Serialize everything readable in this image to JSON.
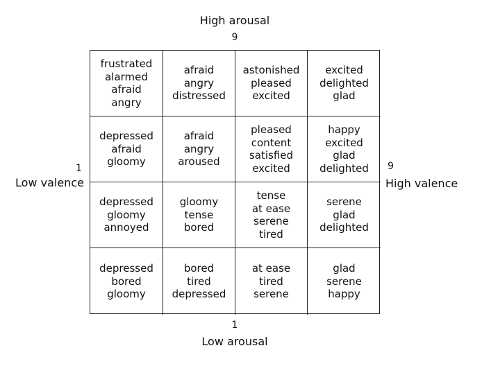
{
  "axes": {
    "top_label": "High arousal",
    "top_value": "9",
    "bottom_label": "Low arousal",
    "bottom_value": "1",
    "left_label": "Low valence",
    "left_value": "1",
    "right_label": "High valence",
    "right_value": "9"
  },
  "grid": [
    [
      [
        "frustrated",
        "alarmed",
        "afraid",
        "angry"
      ],
      [
        "afraid",
        "angry",
        "distressed"
      ],
      [
        "astonished",
        "pleased",
        "excited"
      ],
      [
        "excited",
        "delighted",
        "glad"
      ]
    ],
    [
      [
        "depressed",
        "afraid",
        "gloomy"
      ],
      [
        "afraid",
        "angry",
        "aroused"
      ],
      [
        "pleased",
        "content",
        "satisfied",
        "excited"
      ],
      [
        "happy",
        "excited",
        "glad",
        "delighted"
      ]
    ],
    [
      [
        "depressed",
        "gloomy",
        "annoyed"
      ],
      [
        "gloomy",
        "tense",
        "bored"
      ],
      [
        "tense",
        "at ease",
        "serene",
        "tired"
      ],
      [
        "serene",
        "glad",
        "delighted"
      ]
    ],
    [
      [
        "depressed",
        "bored",
        "gloomy"
      ],
      [
        "bored",
        "tired",
        "depressed"
      ],
      [
        "at ease",
        "tired",
        "serene"
      ],
      [
        "glad",
        "serene",
        "happy"
      ]
    ]
  ]
}
